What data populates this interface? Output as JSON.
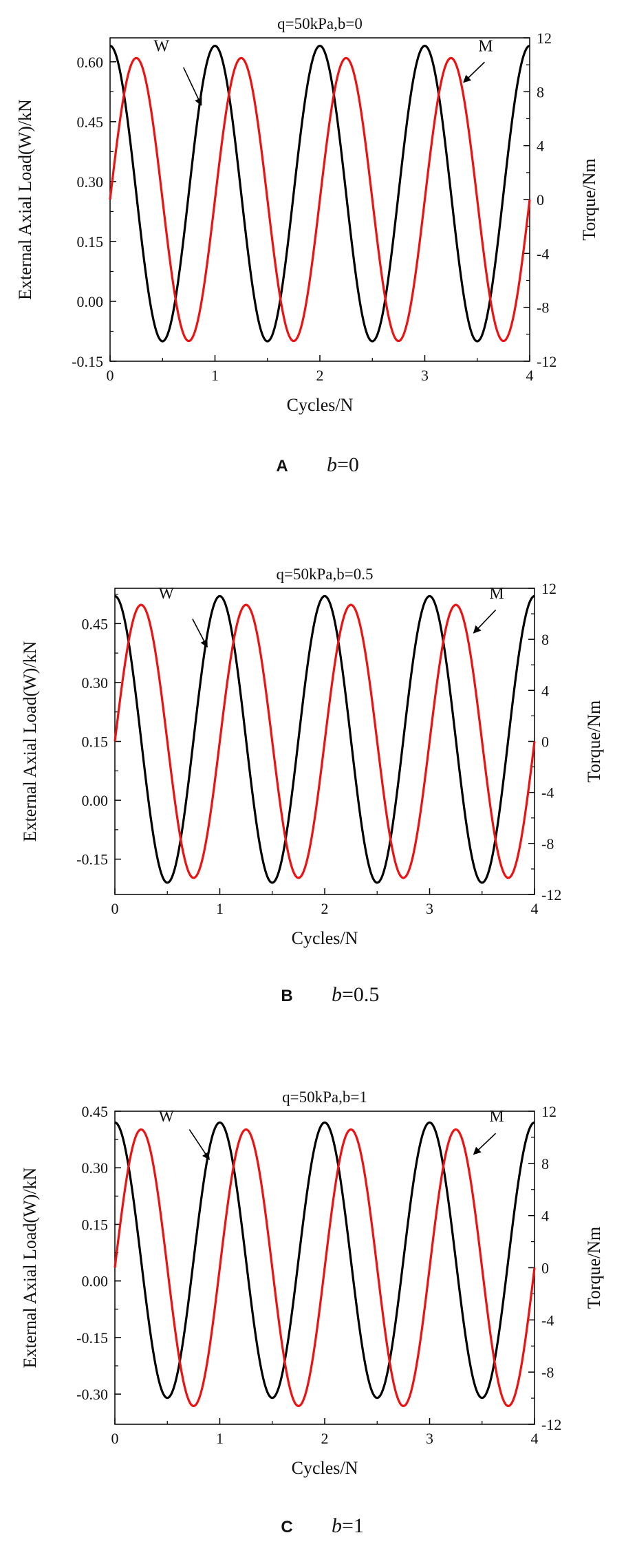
{
  "colors": {
    "W": "#000000",
    "M": "#ee1111",
    "axis": "#000000"
  },
  "panels": [
    {
      "title": "q=50kPa,b=0",
      "xlabel": "Cycles/N",
      "ylabel_left": "External Axial Load(W)/kN",
      "ylabel_right": "Torque/Nm",
      "panel_letter": "A",
      "caption_var": "b",
      "caption_eq": "=0",
      "annot_W": "W",
      "annot_M": "M"
    },
    {
      "title": "q=50kPa,b=0.5",
      "xlabel": "Cycles/N",
      "ylabel_left": "External Axial Load(W)/kN",
      "ylabel_right": "Torque/Nm",
      "panel_letter": "B",
      "caption_var": "b",
      "caption_eq": "=0.5",
      "annot_W": "W",
      "annot_M": "M"
    },
    {
      "title": "q=50kPa,b=1",
      "xlabel": "Cycles/N",
      "ylabel_left": "External Axial Load(W)/kN",
      "ylabel_right": "Torque/Nm",
      "panel_letter": "C",
      "caption_var": "b",
      "caption_eq": "=1",
      "annot_W": "W",
      "annot_M": "M"
    }
  ],
  "chart_data": [
    {
      "type": "line",
      "title": "q=50kPa,b=0",
      "xlabel": "Cycles/N",
      "ylabel": "External Axial Load(W)/kN",
      "y2label": "Torque/Nm",
      "xlim": [
        0,
        4
      ],
      "ylim": [
        -0.15,
        0.66
      ],
      "y2lim": [
        -12,
        12
      ],
      "xticks": [
        "0",
        "1",
        "2",
        "3",
        "4"
      ],
      "yticks": [
        "-0.15",
        "0.00",
        "0.15",
        "0.30",
        "0.45",
        "0.60"
      ],
      "y2ticks": [
        "-12",
        "-8",
        "-4",
        "0",
        "4",
        "8",
        "12"
      ],
      "series": [
        {
          "name": "W",
          "axis": "left",
          "waveform": "cosine",
          "period": 1,
          "max": 0.64,
          "min": -0.1,
          "x": [
            0,
            0.5,
            1,
            1.5,
            2,
            2.5,
            3,
            3.5,
            4
          ],
          "y": [
            0.64,
            -0.1,
            0.64,
            -0.1,
            0.64,
            -0.1,
            0.64,
            -0.1,
            0.64
          ]
        },
        {
          "name": "M",
          "axis": "right",
          "waveform": "sine",
          "period": 1,
          "amplitude": 10.5,
          "x": [
            0,
            0.25,
            0.5,
            0.75,
            1,
            1.25,
            1.5,
            1.75,
            2,
            2.25,
            2.5,
            2.75,
            3,
            3.25,
            3.5,
            3.75,
            4
          ],
          "y": [
            0,
            10.5,
            0,
            -10.5,
            0,
            10.5,
            0,
            -10.5,
            0,
            10.5,
            0,
            -10.5,
            0,
            10.5,
            0,
            -10.5,
            0
          ]
        }
      ]
    },
    {
      "type": "line",
      "title": "q=50kPa,b=0.5",
      "xlabel": "Cycles/N",
      "ylabel": "External Axial Load(W)/kN",
      "y2label": "Torque/Nm",
      "xlim": [
        0,
        4
      ],
      "ylim": [
        -0.24,
        0.54
      ],
      "y2lim": [
        -12,
        12
      ],
      "xticks": [
        "0",
        "1",
        "2",
        "3",
        "4"
      ],
      "yticks": [
        "-0.15",
        "0.00",
        "0.15",
        "0.30",
        "0.45"
      ],
      "y2ticks": [
        "-12",
        "-8",
        "-4",
        "0",
        "4",
        "8",
        "12"
      ],
      "series": [
        {
          "name": "W",
          "axis": "left",
          "waveform": "cosine",
          "period": 1,
          "max": 0.52,
          "min": -0.21,
          "x": [
            0,
            0.5,
            1,
            1.5,
            2,
            2.5,
            3,
            3.5,
            4
          ],
          "y": [
            0.52,
            -0.21,
            0.52,
            -0.21,
            0.52,
            -0.21,
            0.52,
            -0.21,
            0.52
          ]
        },
        {
          "name": "M",
          "axis": "right",
          "waveform": "sine",
          "period": 1,
          "amplitude": 10.7,
          "x": [
            0,
            0.25,
            0.5,
            0.75,
            1,
            1.25,
            1.5,
            1.75,
            2,
            2.25,
            2.5,
            2.75,
            3,
            3.25,
            3.5,
            3.75,
            4
          ],
          "y": [
            0,
            10.7,
            0,
            -10.7,
            0,
            10.7,
            0,
            -10.7,
            0,
            10.7,
            0,
            -10.7,
            0,
            10.7,
            0,
            -10.7,
            0
          ]
        }
      ]
    },
    {
      "type": "line",
      "title": "q=50kPa,b=1",
      "xlabel": "Cycles/N",
      "ylabel": "External Axial Load(W)/kN",
      "y2label": "Torque/Nm",
      "xlim": [
        0,
        4
      ],
      "ylim": [
        -0.38,
        0.45
      ],
      "y2lim": [
        -12,
        12
      ],
      "xticks": [
        "0",
        "1",
        "2",
        "3",
        "4"
      ],
      "yticks": [
        "-0.30",
        "-0.15",
        "0.00",
        "0.15",
        "0.30",
        "0.45"
      ],
      "y2ticks": [
        "-12",
        "-8",
        "-4",
        "0",
        "4",
        "8",
        "12"
      ],
      "series": [
        {
          "name": "W",
          "axis": "left",
          "waveform": "cosine",
          "period": 1,
          "max": 0.42,
          "min": -0.31,
          "x": [
            0,
            0.5,
            1,
            1.5,
            2,
            2.5,
            3,
            3.5,
            4
          ],
          "y": [
            0.42,
            -0.31,
            0.42,
            -0.31,
            0.42,
            -0.31,
            0.42,
            -0.31,
            0.42
          ]
        },
        {
          "name": "M",
          "axis": "right",
          "waveform": "sine",
          "period": 1,
          "amplitude": 10.6,
          "x": [
            0,
            0.25,
            0.5,
            0.75,
            1,
            1.25,
            1.5,
            1.75,
            2,
            2.25,
            2.5,
            2.75,
            3,
            3.25,
            3.5,
            3.75,
            4
          ],
          "y": [
            0,
            10.6,
            0,
            -10.6,
            0,
            10.6,
            0,
            -10.6,
            0,
            10.6,
            0,
            -10.6,
            0,
            10.6,
            0,
            -10.6,
            0
          ]
        }
      ]
    }
  ]
}
